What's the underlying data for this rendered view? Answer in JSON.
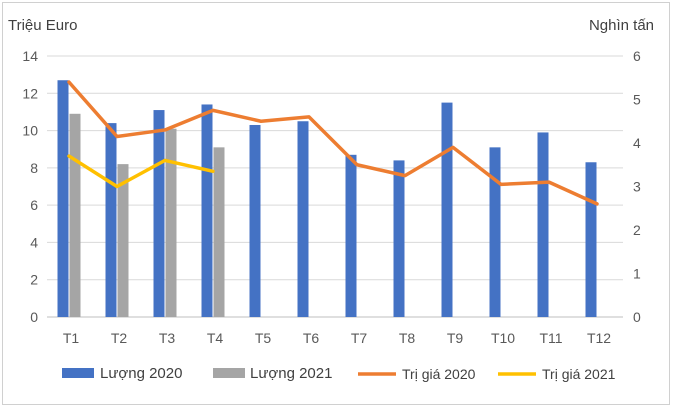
{
  "chart_data": {
    "type": "bar+line",
    "categories": [
      "T1",
      "T2",
      "T3",
      "T4",
      "T5",
      "T6",
      "T7",
      "T8",
      "T9",
      "T10",
      "T11",
      "T12"
    ],
    "y_left": {
      "label": "Triệu Euro",
      "range": [
        0,
        14
      ],
      "ticks": [
        "0",
        "2",
        "4",
        "6",
        "8",
        "10",
        "12",
        "14"
      ]
    },
    "y_right": {
      "label": "Nghìn tấn",
      "range": [
        0,
        6
      ],
      "ticks": [
        "0",
        "1",
        "2",
        "3",
        "4",
        "5",
        "6"
      ]
    },
    "bar_series": [
      {
        "name": "Lượng 2020",
        "color": "#4472c4",
        "axis": "left",
        "values": [
          12.7,
          10.4,
          11.1,
          11.4,
          10.3,
          10.5,
          8.7,
          8.4,
          11.5,
          9.1,
          9.9,
          8.3
        ]
      },
      {
        "name": "Lượng 2021",
        "color": "#a5a5a5",
        "axis": "left",
        "values": [
          10.9,
          8.2,
          10.1,
          9.1,
          null,
          null,
          null,
          null,
          null,
          null,
          null,
          null
        ]
      }
    ],
    "line_series": [
      {
        "name": "Trị giá 2020",
        "color": "#ed7d31",
        "axis": "right",
        "values": [
          5.4,
          4.15,
          4.3,
          4.75,
          4.5,
          4.6,
          3.5,
          3.25,
          3.9,
          3.05,
          3.1,
          2.6
        ]
      },
      {
        "name": "Trị giá 2021",
        "color": "#ffc000",
        "axis": "right",
        "values": [
          3.7,
          3.0,
          3.6,
          3.35,
          null,
          null,
          null,
          null,
          null,
          null,
          null,
          null
        ]
      }
    ],
    "grid": true,
    "legend_position": "bottom"
  }
}
